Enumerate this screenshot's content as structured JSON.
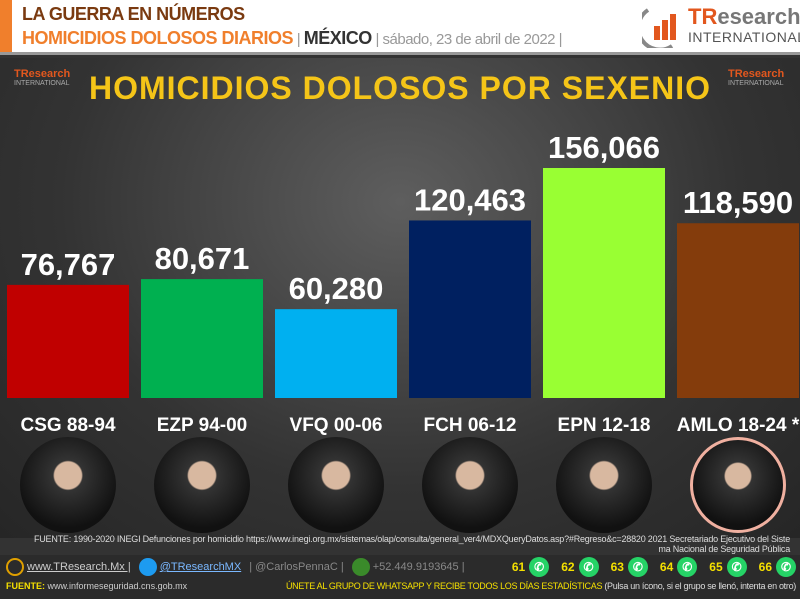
{
  "header": {
    "line1": "LA GUERRA EN NÚMEROS",
    "line2_a": "HOMICIDIOS DOLOSOS DIARIOS",
    "sep": " | ",
    "line2_b": "MÉXICO",
    "date": "sábado, 23 de abril de 2022 |",
    "logo_a": "TR",
    "logo_b": "esearch",
    "logo_c": "INTERNATIONAL"
  },
  "chart_data": {
    "type": "bar",
    "title": "HOMICIDIOS DOLOSOS POR SEXENIO",
    "categories": [
      "CSG 88-94",
      "EZP 94-00",
      "VFQ 00-06",
      "FCH 06-12",
      "EPN 12-18",
      "AMLO 18-24 *"
    ],
    "values": [
      76767,
      80671,
      60280,
      120463,
      156066,
      118590
    ],
    "labels": [
      "76,767",
      "80,671",
      "60,280",
      "120,463",
      "156,066",
      "118,590"
    ],
    "colors": [
      "#c00000",
      "#00b050",
      "#00b0f0",
      "#002060",
      "#99ff33",
      "#843c0c"
    ],
    "ylim": [
      0,
      156066
    ],
    "grid": false
  },
  "footer": {
    "source": "FUENTE: 1990-2020 INEGI Defunciones por homicidio https://www.inegi.org.mx/sistemas/olap/consulta/general_ver4/MDXQueryDatos.asp?#Regreso&c=28820   2021 Secretariado Ejecutivo del Sistema Nacional de Seguridad Pública",
    "web": "www.TResearch.Mx |",
    "twitter": "@TResearchMX",
    "handle": "| @CarlosPennaC |",
    "phone": "+52.449.9193645 |",
    "groups": [
      "61",
      "62",
      "63",
      "64",
      "65",
      "66"
    ],
    "fuente_label": "FUENTE:",
    "fuente_url": "www.informeseguridad.cns.gob.mx",
    "join": "ÚNETE AL GRUPO DE WHATSAPP Y RECIBE TODOS LOS DÍAS ESTADÍSTICAS",
    "join_note": "(Pulsa un ícono, si el grupo se llenó, intenta en otro)"
  }
}
